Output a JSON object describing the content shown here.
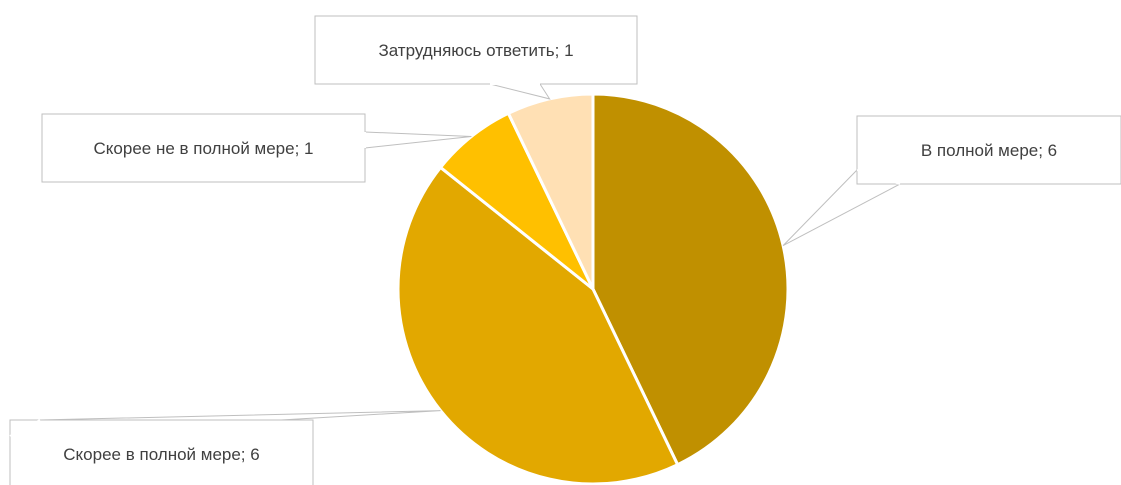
{
  "chart_data": {
    "type": "pie",
    "title": "",
    "slices": [
      {
        "label": "В полной мере",
        "value": 6,
        "color": "#C09000",
        "data_label": "В полной мере; 6"
      },
      {
        "label": "Скорее в полной мере",
        "value": 6,
        "color": "#E2A800",
        "data_label": "Скорее в полной мере; 6"
      },
      {
        "label": "Скорее не в полной мере",
        "value": 1,
        "color": "#FFC000",
        "data_label": "Скорее не в полной мере; 1"
      },
      {
        "label": "Затрудняюсь ответить",
        "value": 1,
        "color": "#FFE0B4",
        "data_label": "Затрудняюсь ответить; 1"
      }
    ],
    "legend": "none",
    "slice_separator_color": "#ffffff",
    "callout_border_color": "#BFBFBF",
    "label_text_color": "#404040"
  }
}
